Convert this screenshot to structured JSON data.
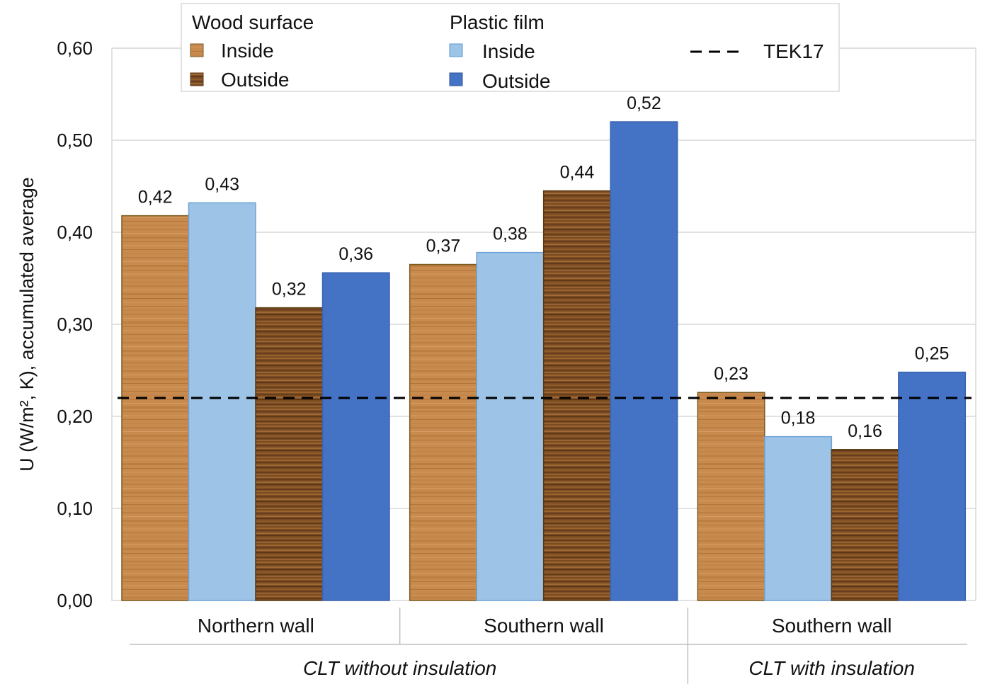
{
  "chart_data": {
    "type": "bar",
    "ylabel": "U (W/m², K), accumulated average",
    "ylim": [
      0,
      0.6
    ],
    "yticks": [
      0,
      0.1,
      0.2,
      0.3,
      0.4,
      0.5,
      0.6
    ],
    "ytick_labels": [
      "0,00",
      "0,10",
      "0,20",
      "0,30",
      "0,40",
      "0,50",
      "0,60"
    ],
    "categories": [
      "Northern  wall",
      "Southern  wall",
      "Southern  wall"
    ],
    "groups": [
      {
        "label": "CLT without insulation",
        "categories": [
          0,
          1
        ]
      },
      {
        "label": "CLT with insulation",
        "categories": [
          2
        ]
      }
    ],
    "series": [
      {
        "name": "Wood surface – Inside",
        "color": "#c98a4e",
        "values": [
          0.418,
          0.365,
          0.226
        ],
        "labels": [
          "0,42",
          "0,37",
          "0,23"
        ]
      },
      {
        "name": "Plastic film – Inside",
        "color": "#9dc3e6",
        "values": [
          0.432,
          0.378,
          0.178
        ],
        "labels": [
          "0,43",
          "0,38",
          "0,18"
        ]
      },
      {
        "name": "Wood surface – Outside",
        "color": "#7a4a23",
        "values": [
          0.318,
          0.445,
          0.164
        ],
        "labels": [
          "0,32",
          "0,44",
          "0,16"
        ]
      },
      {
        "name": "Plastic film – Outside",
        "color": "#4472c4",
        "values": [
          0.356,
          0.52,
          0.248
        ],
        "labels": [
          "0,36",
          "0,52",
          "0,25"
        ]
      }
    ],
    "reference_line": {
      "name": "TEK17",
      "value": 0.22,
      "style": "dashed",
      "color": "#000000"
    },
    "grid": true,
    "legend": {
      "position": "top",
      "wood_heading": "Wood surface",
      "plastic_heading": "Plastic film",
      "inside_label": "Inside",
      "outside_label": "Outside",
      "reference_label": "TEK17"
    }
  }
}
